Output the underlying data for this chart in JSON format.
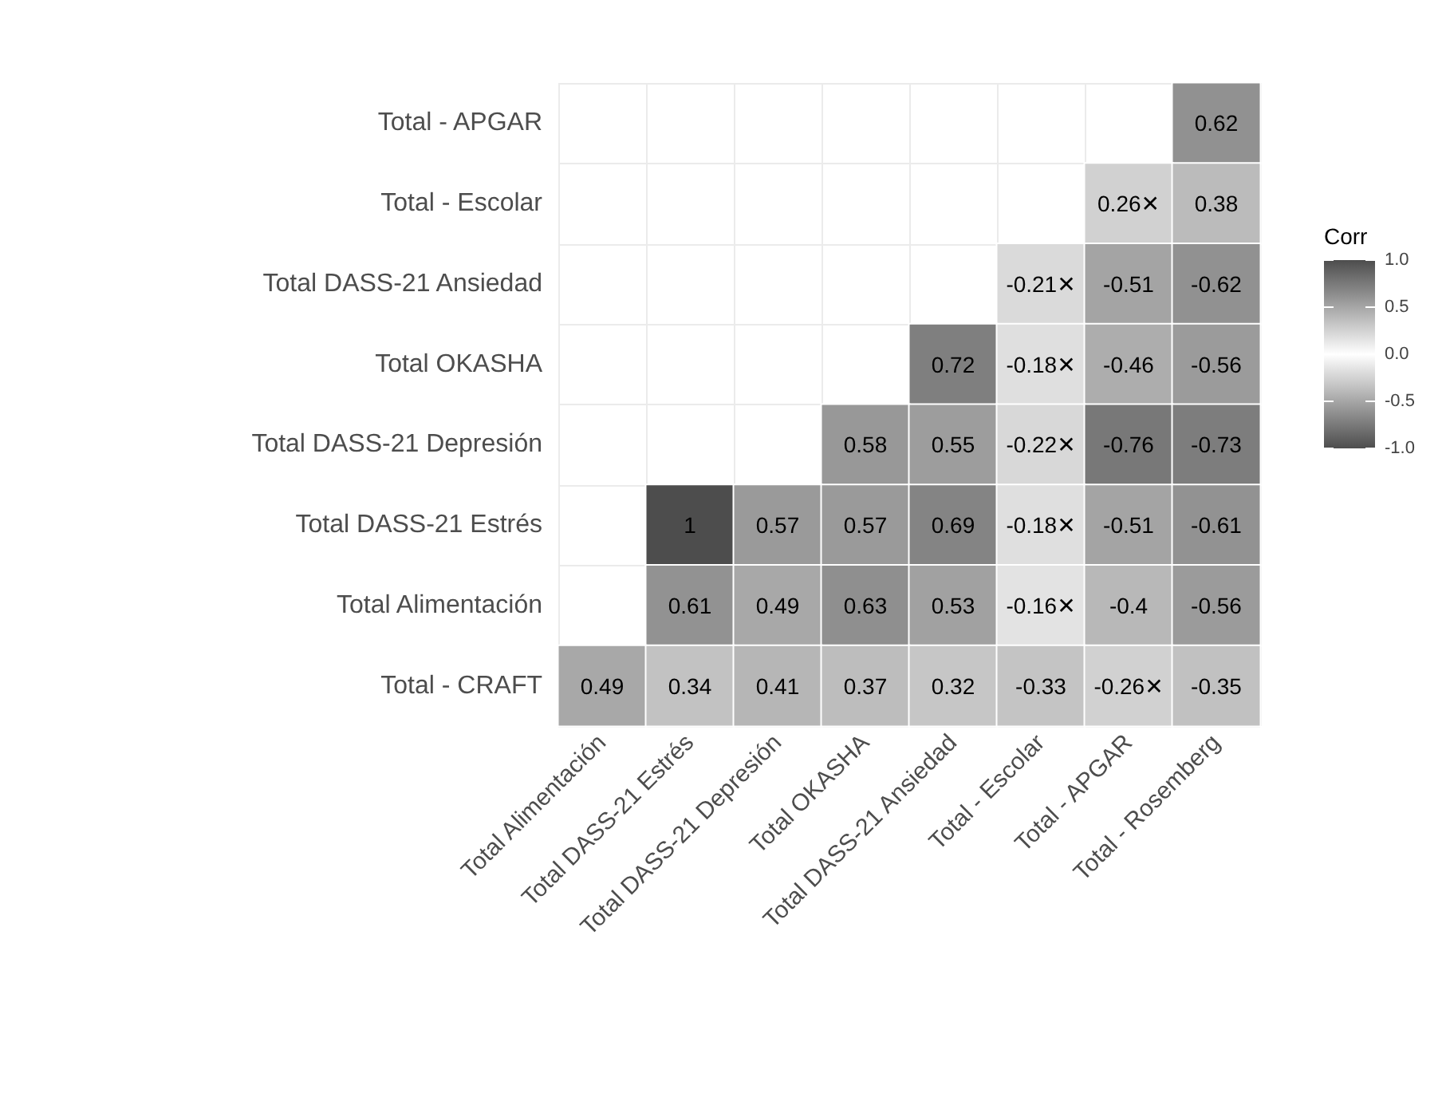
{
  "chart_data": {
    "type": "heatmap",
    "clabel": "Corr",
    "categories": [
      "Total Alimentación",
      "Total DASS-21 Estrés",
      "Total DASS-21 Depresión",
      "Total OKASHA",
      "Total DASS-21 Ansiedad",
      "Total - Escolar",
      "Total - APGAR",
      "Total - Rosemberg"
    ],
    "y_categories": [
      "Total - APGAR",
      "Total - Escolar",
      "Total DASS-21 Ansiedad",
      "Total OKASHA",
      "Total DASS-21 Depresión",
      "Total DASS-21 Estrés",
      "Total Alimentación",
      "Total - CRAFT"
    ],
    "cells": [
      [
        null,
        null,
        null,
        null,
        null,
        null,
        null,
        0.62
      ],
      [
        null,
        null,
        null,
        null,
        null,
        null,
        0.26,
        0.38
      ],
      [
        null,
        null,
        null,
        null,
        null,
        -0.21,
        -0.51,
        -0.62
      ],
      [
        null,
        null,
        null,
        null,
        0.72,
        -0.18,
        -0.46,
        -0.56
      ],
      [
        null,
        null,
        null,
        0.58,
        0.55,
        -0.22,
        -0.76,
        -0.73
      ],
      [
        null,
        1,
        0.57,
        0.57,
        0.69,
        -0.18,
        -0.51,
        -0.61
      ],
      [
        null,
        0.61,
        0.49,
        0.63,
        0.53,
        -0.16,
        -0.4,
        -0.56
      ],
      [
        0.49,
        0.34,
        0.41,
        0.37,
        0.32,
        -0.33,
        -0.26,
        -0.35
      ]
    ],
    "clim": [
      -1,
      1
    ],
    "cticks": [
      {
        "value": 1,
        "label": "1.0"
      },
      {
        "value": 0.5,
        "label": "0.5"
      },
      {
        "value": 0,
        "label": "0.0"
      },
      {
        "value": -0.5,
        "label": "-0.5"
      },
      {
        "value": -1,
        "label": "-1.0"
      }
    ],
    "cell_labels": [
      [
        null,
        null,
        null,
        null,
        null,
        null,
        null,
        "0.62"
      ],
      [
        null,
        null,
        null,
        null,
        null,
        null,
        "0.26✕",
        "0.38"
      ],
      [
        null,
        null,
        null,
        null,
        null,
        "-0.21✕",
        "-0.51",
        "-0.62"
      ],
      [
        null,
        null,
        null,
        null,
        "0.72",
        "-0.18✕",
        "-0.46",
        "-0.56"
      ],
      [
        null,
        null,
        null,
        "0.58",
        "0.55",
        "-0.22✕",
        "-0.76",
        "-0.73"
      ],
      [
        null,
        "1",
        "0.57",
        "0.57",
        "0.69",
        "-0.18✕",
        "-0.51",
        "-0.61"
      ],
      [
        null,
        "0.61",
        "0.49",
        "0.63",
        "0.53",
        "-0.16✕",
        "-0.4",
        "-0.56"
      ],
      [
        "0.49",
        "0.34",
        "0.41",
        "0.37",
        "0.32",
        "-0.33",
        "-0.26✕",
        "-0.35"
      ]
    ],
    "grid": true
  }
}
